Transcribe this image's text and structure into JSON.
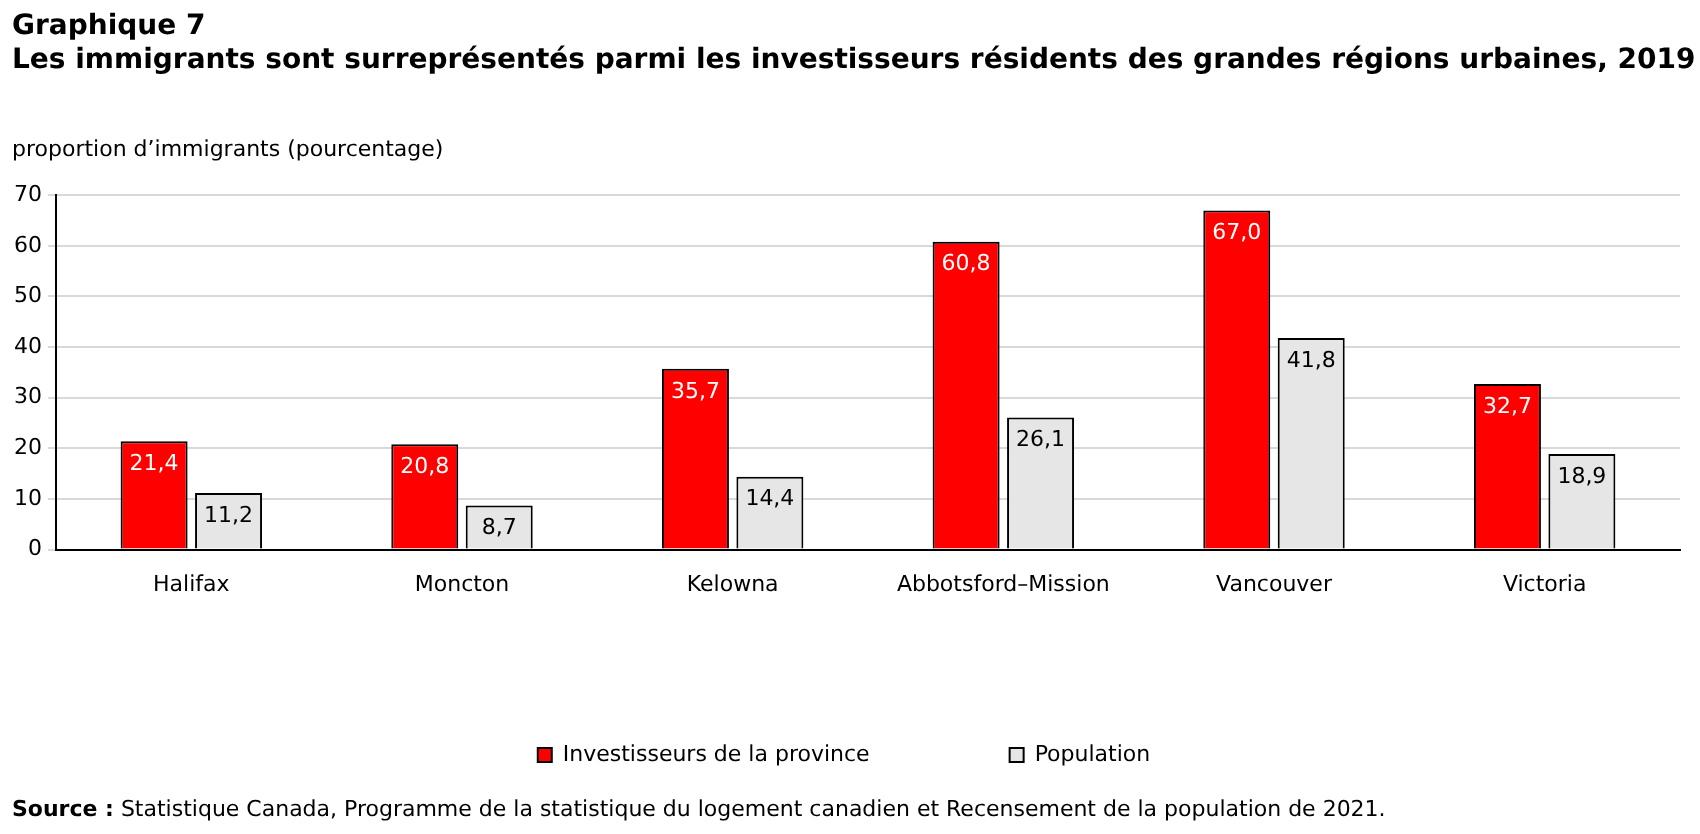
{
  "chart_data": {
    "type": "bar",
    "title": "Graphique 7",
    "subtitle": "Les immigrants sont surreprésentés parmi les investisseurs résidents des grandes régions urbaines, 2019",
    "ylabel": "proportion d’immigrants (pourcentage)",
    "categories": [
      "Halifax",
      "Moncton",
      "Kelowna",
      "Abbotsford–Mission",
      "Vancouver",
      "Victoria"
    ],
    "series": [
      {
        "name": "Investisseurs de la province",
        "color": "#ff0000",
        "values": [
          21.4,
          20.8,
          35.7,
          60.8,
          67.0,
          32.7
        ],
        "value_labels": [
          "21,4",
          "20,8",
          "35,7",
          "60,8",
          "67,0",
          "32,7"
        ]
      },
      {
        "name": "Population",
        "color": "#e6e6e6",
        "values": [
          11.2,
          8.7,
          14.4,
          26.1,
          41.8,
          18.9
        ],
        "value_labels": [
          "11,2",
          "8,7",
          "14,4",
          "26,1",
          "41,8",
          "18,9"
        ]
      }
    ],
    "ylim": [
      0,
      70
    ],
    "yticks": [
      0,
      10,
      20,
      30,
      40,
      50,
      60,
      70
    ],
    "grid": "y",
    "legend": "bottom",
    "annotations": [
      "Source : Statistique Canada, Programme de la statistique du logement canadien et Recensement de la population de 2021."
    ]
  }
}
